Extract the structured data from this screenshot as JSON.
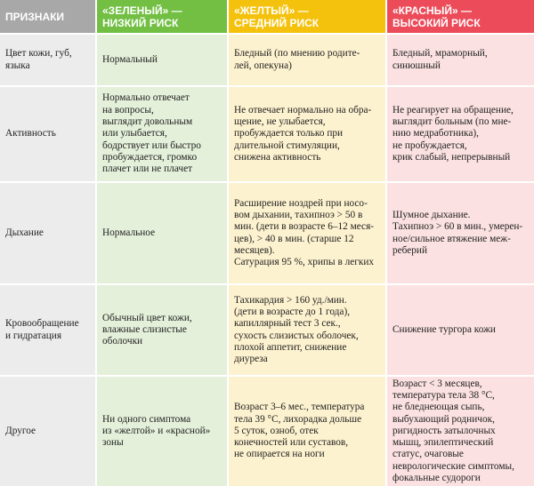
{
  "header": [
    [
      "ПРИЗНАКИ"
    ],
    [
      "«ЗЕЛЕНЫЙ» —",
      "НИЗКИЙ РИСК"
    ],
    [
      "«ЖЕЛТЫЙ» —",
      "СРЕДНИЙ РИСК"
    ],
    [
      "«КРАСНЫЙ» —",
      "ВЫСОКИЙ РИСК"
    ]
  ],
  "rows": [
    [
      [
        "Цвет кожи, губ,",
        "языка"
      ],
      [
        "Нормальный"
      ],
      [
        "Бледный (по мнению родите-",
        "лей, опекуна)"
      ],
      [
        "Бледный, мраморный,",
        "синюшный"
      ]
    ],
    [
      [
        "Активность"
      ],
      [
        "Нормально отвечает",
        "на вопросы,",
        "выглядит довольным",
        "или улыбается,",
        "бодрствует или быстро",
        "пробуждается, громко",
        "плачет или не плачет"
      ],
      [
        "Не отвечает нормально на обра-",
        "щение, не улыбается,",
        "пробуждается только при",
        "длительной стимуляции,",
        "снижена активность"
      ],
      [
        "Не реагирует на обращение,",
        "выглядит больным (по мне-",
        "нию медработника),",
        "не пробуждается,",
        "крик слабый, непрерывный"
      ]
    ],
    [
      [
        "Дыхание"
      ],
      [
        "Нормальное"
      ],
      [
        "Расширение ноздрей при носо-",
        "вом дыхании, тахипноэ > 50 в",
        "мин. (дети в возрасте 6–12 меся-",
        "цев), > 40 в мин. (старше 12",
        "месяцев).",
        "Сатурация 95 %, хрипы в легких"
      ],
      [
        "Шумное дыхание.",
        "Тахипноэ > 60 в мин., умерен-",
        "ное/сильное втяжение меж-",
        "реберий"
      ]
    ],
    [
      [
        "Кровообращение",
        "и гидратация"
      ],
      [
        "Обычный цвет кожи,",
        "влажные слизистые",
        "оболочки"
      ],
      [
        "Тахикардия > 160 уд./мин.",
        "(дети в возрасте до 1 года),",
        "капиллярный тест 3 сек.,",
        "сухость слизистых оболочек,",
        "плохой аппетит, снижение",
        "диуреза"
      ],
      [
        "Снижение тургора кожи"
      ]
    ],
    [
      [
        "Другое"
      ],
      [
        "Ни одного симптома",
        "из «желтой» и «красной»",
        "зоны"
      ],
      [
        "Возраст 3–6 мес., температура",
        "тела 39 °C, лихорадка дольше",
        "5 суток, озноб, отек",
        "конечностей или суставов,",
        "не опирается на ноги"
      ],
      [
        "Возраст < 3 месяцев,",
        "температура тела 38 °C,",
        "не бледнеющая сыпь,",
        "выбухающий родничок,",
        "ригидность затылочных",
        "мышц, эпилептический",
        "статус, очаговые",
        "неврологические симптомы,",
        "фокальные судороги"
      ]
    ]
  ]
}
